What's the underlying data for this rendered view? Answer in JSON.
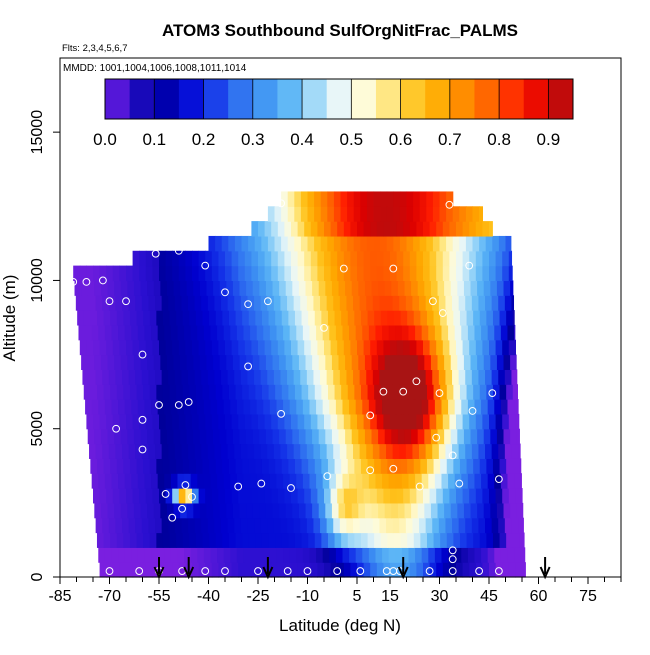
{
  "chart_data": {
    "type": "heatmap",
    "title": "ATOM3 Southbound SulfOrgNitFrac_PALMS",
    "subtitle_flights": "Flts: 2,3,4,5,6,7",
    "subtitle_dates": "MMDD: 1001,1004,1006,1008,1011,1014",
    "xlabel": "Latitude (deg N)",
    "ylabel": "Altitude (m)",
    "xlim": [
      -85,
      85
    ],
    "ylim": [
      0,
      17500
    ],
    "x_ticks": [
      -85,
      -70,
      -55,
      -40,
      -25,
      -10,
      5,
      15,
      30,
      45,
      60,
      75
    ],
    "x_minor_ticks": [
      -80,
      -75,
      -65,
      -60,
      -50,
      -45,
      -35,
      -30,
      -20,
      -15,
      -5,
      0,
      10,
      20,
      25,
      35,
      40,
      50,
      55,
      65,
      70,
      80,
      85
    ],
    "y_ticks": [
      0,
      5000,
      10000,
      15000
    ],
    "colorbar": {
      "ticks": [
        "0.0",
        "0.1",
        "0.2",
        "0.3",
        "0.4",
        "0.5",
        "0.6",
        "0.7",
        "0.8",
        "0.9"
      ],
      "min": 0.0,
      "max": 0.95,
      "step": 0.05
    },
    "colors": [
      "#7a1fe0",
      "#2a0fd0",
      "#00009a",
      "#0000d0",
      "#1432e8",
      "#2d6cf0",
      "#3f93f2",
      "#5ab4f6",
      "#9fd8f8",
      "#e8f6f8",
      "#fffbd6",
      "#ffe57a",
      "#ffc21c",
      "#ffa800",
      "#ff8400",
      "#ff5a00",
      "#ff1c00",
      "#dc0000",
      "#a81414"
    ],
    "altitude_bands": [
      0,
      500,
      1000,
      1500,
      2000,
      2500,
      3000,
      3500,
      4000,
      4500,
      5000,
      5500,
      6000,
      6500,
      7000,
      7500,
      8000,
      8500,
      9000,
      9500,
      10000,
      10500,
      11000,
      11500,
      12000,
      12500
    ],
    "latitude_extent": {
      "south_bottom": -73,
      "south_top": -83,
      "north_bottom": 56,
      "north_top": 51
    },
    "grid": false,
    "legend": "top",
    "sample_points": [
      [
        -70,
        200
      ],
      [
        -61,
        200
      ],
      [
        -55,
        200
      ],
      [
        -48,
        200
      ],
      [
        -41,
        200
      ],
      [
        -35,
        200
      ],
      [
        -25,
        200
      ],
      [
        -16,
        200
      ],
      [
        -10,
        200
      ],
      [
        -1,
        200
      ],
      [
        6,
        200
      ],
      [
        14,
        200
      ],
      [
        16,
        200
      ],
      [
        18,
        200
      ],
      [
        27,
        200
      ],
      [
        34,
        200
      ],
      [
        42,
        200
      ],
      [
        48,
        200
      ],
      [
        34,
        600
      ],
      [
        34,
        900
      ],
      [
        -48,
        2300
      ],
      [
        -45,
        2700
      ],
      [
        -47,
        3100
      ],
      [
        -53,
        2800
      ],
      [
        -51,
        2000
      ],
      [
        -31,
        3050
      ],
      [
        -24,
        3150
      ],
      [
        -15,
        3000
      ],
      [
        -4,
        3400
      ],
      [
        9,
        3600
      ],
      [
        16,
        3650
      ],
      [
        24,
        3050
      ],
      [
        36,
        3150
      ],
      [
        48,
        3300
      ],
      [
        -68,
        5000
      ],
      [
        -60,
        4300
      ],
      [
        -60,
        5300
      ],
      [
        -55,
        5800
      ],
      [
        -49,
        5800
      ],
      [
        -46,
        5900
      ],
      [
        -18,
        5500
      ],
      [
        9,
        5450
      ],
      [
        29,
        4700
      ],
      [
        34,
        4100
      ],
      [
        40,
        5600
      ],
      [
        13,
        6250
      ],
      [
        19,
        6250
      ],
      [
        23,
        6600
      ],
      [
        30,
        6200
      ],
      [
        46,
        6200
      ],
      [
        -60,
        7500
      ],
      [
        -28,
        7100
      ],
      [
        -5,
        8400
      ],
      [
        -70,
        9300
      ],
      [
        -65,
        9300
      ],
      [
        -35,
        9600
      ],
      [
        -28,
        9200
      ],
      [
        -22,
        9300
      ],
      [
        28,
        9300
      ],
      [
        31,
        8900
      ],
      [
        -81,
        9950
      ],
      [
        -77,
        9950
      ],
      [
        -72,
        10000
      ],
      [
        -41,
        10500
      ],
      [
        1,
        10400
      ],
      [
        16,
        10400
      ],
      [
        39,
        10500
      ],
      [
        -56,
        10900
      ],
      [
        -49,
        11000
      ],
      [
        -18,
        12600
      ],
      [
        33,
        12550
      ]
    ],
    "flight_start_latitudes": [
      -55,
      -46,
      -22,
      19,
      62
    ],
    "arrow_label": ""
  }
}
